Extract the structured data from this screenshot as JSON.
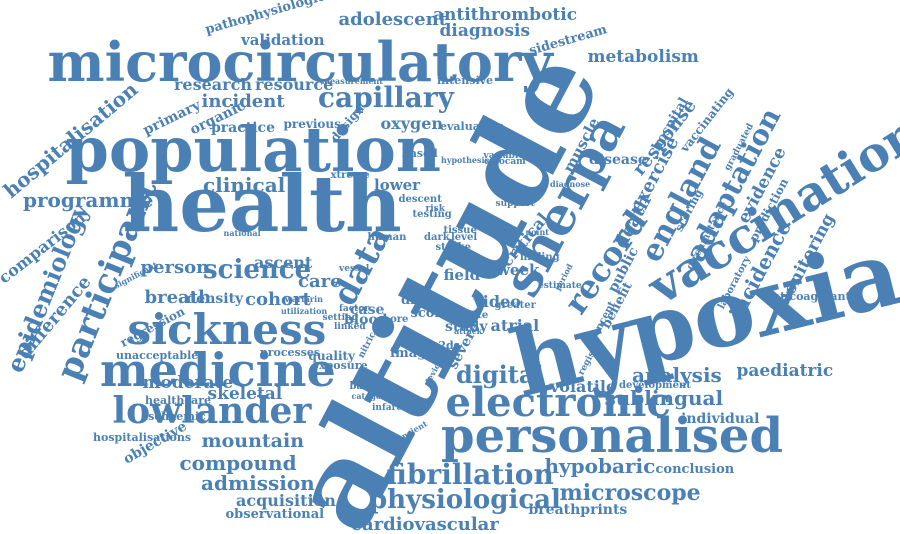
{
  "colors": {
    "word": "#4a80b4",
    "background": "#ffffff"
  },
  "words": [
    "altitude",
    "hypoxia",
    "health",
    "population",
    "sherpa",
    "microcirculatory",
    "personalised",
    "vaccination",
    "electronic",
    "medicine",
    "sickness",
    "lowlander",
    "participant",
    "data",
    "record",
    "capillary",
    "science",
    "england",
    "adaptation",
    "fibrillation",
    "physiological",
    "digital",
    "microscope",
    "hypobaric",
    "compound",
    "admission",
    "mountain",
    "cardiovascular",
    "acquisition",
    "observational",
    "breathprints",
    "sublingual",
    "analysis",
    "paediatric",
    "volatile",
    "individual",
    "conclusion",
    "epidemiology",
    "difference",
    "hospitalisation",
    "comparison",
    "programme",
    "clinical",
    "incident",
    "research",
    "resource",
    "primary",
    "organic",
    "practice",
    "person",
    "breath",
    "density",
    "cohort",
    "care",
    "ascent",
    "moderate",
    "skeletal",
    "healthcare",
    "ischaemic",
    "objective",
    "hospitalisations",
    "unacceptable",
    "processes",
    "quality",
    "exposure",
    "image",
    "severe",
    "study",
    "video",
    "week",
    "field",
    "case",
    "blood",
    "score",
    "drug",
    "adolescent",
    "antithrombotic",
    "diagnosis",
    "validation",
    "pathophysiological",
    "sidestream",
    "metabolism",
    "response",
    "hospital",
    "vaccinating",
    "death",
    "public",
    "benefit",
    "exercise",
    "evidence",
    "incidence",
    "monitoring",
    "prediction",
    "laboratory",
    "anticoagulant",
    "atrial",
    "critical",
    "muscle",
    "disease",
    "oxygen",
    "evaluation",
    "intensive",
    "measurement",
    "previous",
    "design",
    "lower",
    "xtreme",
    "based",
    "national",
    "regression",
    "significant",
    "cha2ds",
    "baseline",
    "categories",
    "infarction",
    "development",
    "registry",
    "concept",
    "scoring",
    "circumstance",
    "graduated",
    "stroke",
    "tissue",
    "level",
    "testing",
    "descent",
    "human",
    "dark",
    "finding",
    "rate",
    "greater",
    "vessel",
    "estimate",
    "nitric",
    "attack",
    "device",
    "transient",
    "support",
    "variable",
    "cytocam",
    "diagnose",
    "period",
    "risk",
    "hypothesis",
    "warfarin",
    "utilization",
    "factor",
    "setting",
    "linked",
    "more",
    "point"
  ]
}
